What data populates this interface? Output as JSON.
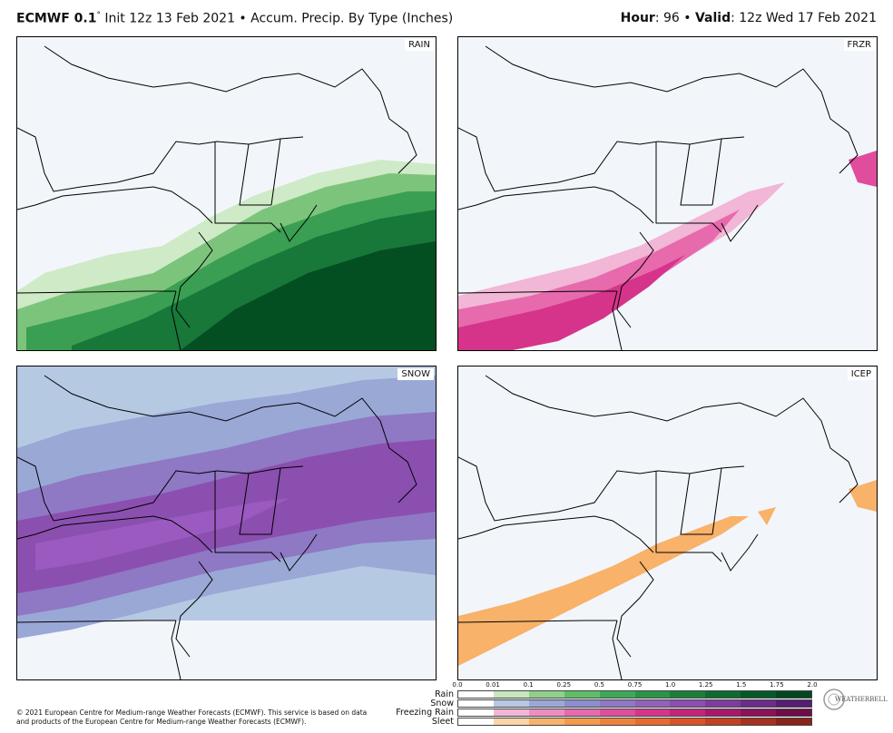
{
  "header": {
    "model": "ECMWF 0.1",
    "degree": "°",
    "init": " Init 12z 13 Feb 2021 • Accum. Precip. By Type (Inches)",
    "hour_label": "Hour",
    "hour_value": ": 96 • ",
    "valid_label": "Valid",
    "valid_value": ": 12z Wed 17 Feb 2021"
  },
  "panels": [
    {
      "tag": "RAIN",
      "color": "#1e8a3c"
    },
    {
      "tag": "FRZR",
      "color": "#e0308a"
    },
    {
      "tag": "SNOW",
      "color": "#8b4fb0"
    },
    {
      "tag": "ICEP",
      "color": "#f8b26a"
    }
  ],
  "legend": {
    "ticks": [
      "0.0",
      "0.01",
      "0.1",
      "0.25",
      "0.5",
      "0.75",
      "1.0",
      "1.25",
      "1.5",
      "1.75",
      "2.0"
    ],
    "rows": [
      {
        "name": "Rain",
        "colors": [
          "#ffffff",
          "#c6e8bd",
          "#8fd18a",
          "#5fbd6a",
          "#3ea85a",
          "#2a944a",
          "#1b7f3b",
          "#0f6b30",
          "#075a28",
          "#03471f"
        ]
      },
      {
        "name": "Snow",
        "colors": [
          "#ffffff",
          "#b6c9e3",
          "#9aa8d6",
          "#8b8fcf",
          "#8f78c4",
          "#9262b8",
          "#8b4fb0",
          "#7d3d9f",
          "#6a2d8a",
          "#551e73"
        ]
      },
      {
        "name": "Freezing Rain",
        "colors": [
          "#ffffff",
          "#f2b6d6",
          "#ec8ec0",
          "#e66aac",
          "#e04d9c",
          "#d6348a",
          "#c4237a",
          "#a8186a",
          "#8c115a",
          "#6f0c48"
        ]
      },
      {
        "name": "Sleet",
        "colors": [
          "#ffffff",
          "#fbd4a8",
          "#f8b26a",
          "#f49a4a",
          "#ef823a",
          "#e66a2e",
          "#d85428",
          "#c24024",
          "#a83020",
          "#8a231c"
        ]
      }
    ]
  },
  "credit": "© 2021 European Centre for Medium-range Weather Forecasts (ECMWF). This service is based on data and products of the European Centre for Medium-range Weather Forecasts (ECMWF).",
  "logo": "WEATHERBELL"
}
